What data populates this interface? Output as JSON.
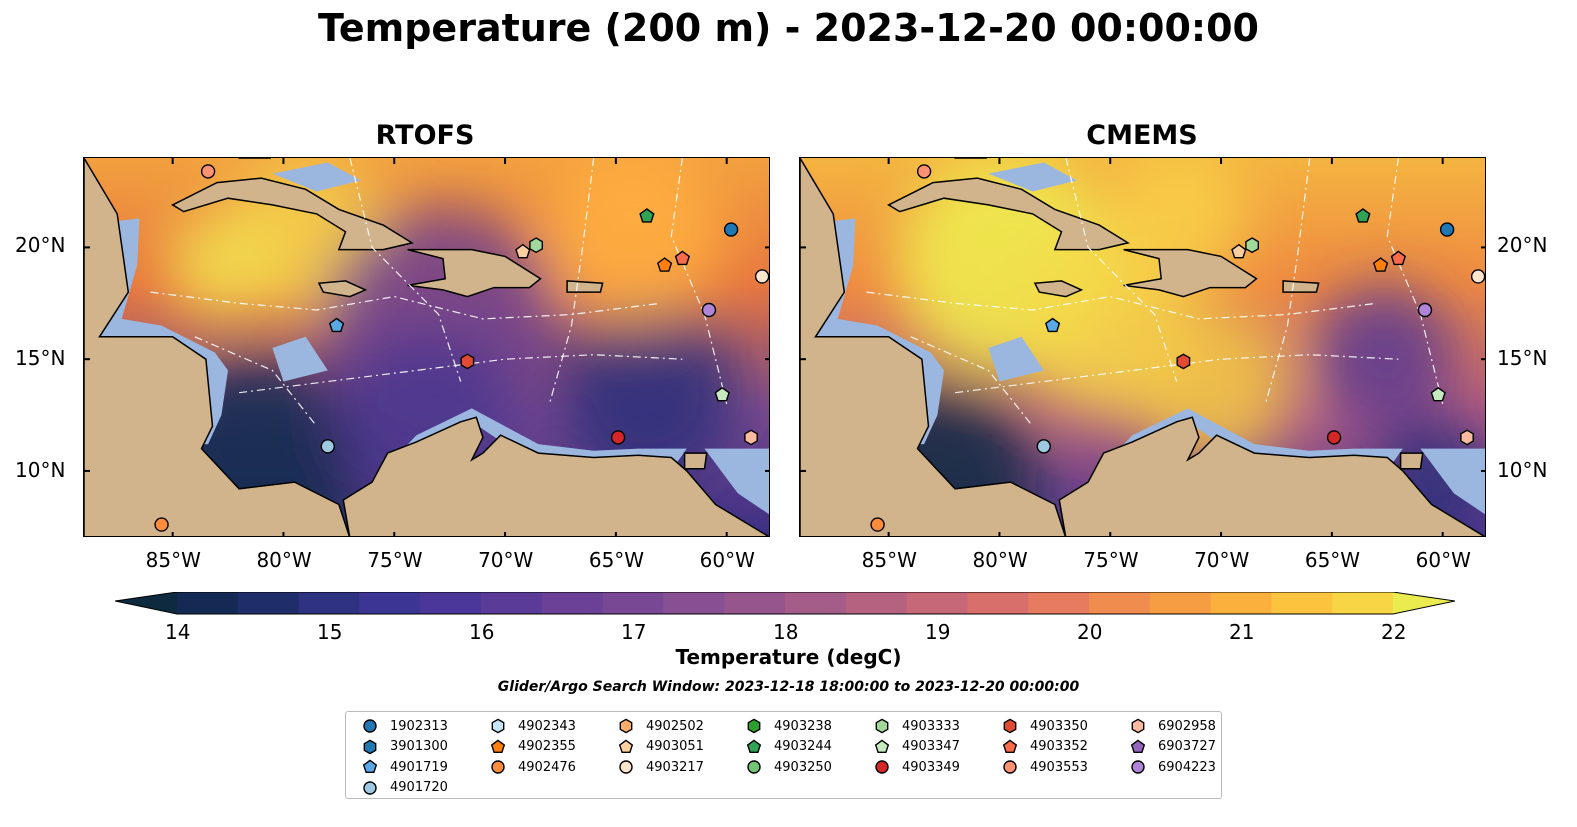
{
  "title": "Temperature (200 m) - 2023-12-20 00:00:00",
  "colors": {
    "land": "#d2b48c",
    "shelf": "#9bb7e0",
    "contour": "#222222",
    "track": "#ffffff"
  },
  "chart_data": {
    "type": "heatmap",
    "panels": [
      {
        "title": "RTOFS"
      },
      {
        "title": "CMEMS"
      }
    ],
    "lon_range": [
      -89,
      -58
    ],
    "lat_range": [
      7,
      24
    ],
    "lon_ticks": [
      -85,
      -80,
      -75,
      -70,
      -65,
      -60
    ],
    "lat_ticks": [
      10,
      15,
      20
    ],
    "lon_tick_labels": [
      "85°W",
      "80°W",
      "75°W",
      "70°W",
      "65°W",
      "60°W"
    ],
    "lat_tick_labels": [
      "10°N",
      "15°N",
      "20°N"
    ],
    "colorbar": {
      "label": "Temperature (degC)",
      "min": 14,
      "max": 22,
      "ticks": [
        14,
        15,
        16,
        17,
        18,
        19,
        20,
        21,
        22
      ],
      "colors": [
        "#0e2a3f",
        "#142a55",
        "#1f2e6a",
        "#2e3280",
        "#3d3593",
        "#4b3799",
        "#5b3b98",
        "#6a4196",
        "#784894",
        "#875092",
        "#96568d",
        "#a45c88",
        "#b46280",
        "#c66877",
        "#d86f6b",
        "#e67b5f",
        "#ef8c4e",
        "#f69d43",
        "#fbb03e",
        "#fcc33f",
        "#f8d545",
        "#e9eb4f"
      ]
    },
    "search_window": "Glider/Argo Search Window: 2023-12-18 18:00:00 to 2023-12-20 00:00:00",
    "floats": [
      {
        "id": "1902313",
        "marker": "circle",
        "color": "#1f77b4",
        "lon": -59.8,
        "lat": 20.8
      },
      {
        "id": "3901300",
        "marker": "hexagon",
        "color": "#1f77b4",
        "lon": null,
        "lat": null
      },
      {
        "id": "4901719",
        "marker": "pentagon",
        "color": "#5aa9e6",
        "lon": -77.6,
        "lat": 16.5
      },
      {
        "id": "4901720",
        "marker": "circle",
        "color": "#9ecae1",
        "lon": -78.0,
        "lat": 11.1
      },
      {
        "id": "4902343",
        "marker": "hexagon",
        "color": "#c6e6f5",
        "lon": null,
        "lat": null
      },
      {
        "id": "4902355",
        "marker": "pentagon",
        "color": "#ff7f0e",
        "lon": -62.8,
        "lat": 19.2
      },
      {
        "id": "4902476",
        "marker": "circle",
        "color": "#fd8d3c",
        "lon": -85.5,
        "lat": 7.6
      },
      {
        "id": "4902502",
        "marker": "hexagon",
        "color": "#fdae6b",
        "lon": null,
        "lat": null
      },
      {
        "id": "4903051",
        "marker": "pentagon",
        "color": "#fdd0a2",
        "lon": -69.2,
        "lat": 19.8
      },
      {
        "id": "4903217",
        "marker": "circle",
        "color": "#fee6ce",
        "lon": -58.4,
        "lat": 18.7
      },
      {
        "id": "4903238",
        "marker": "hexagon",
        "color": "#2ca02c",
        "lon": null,
        "lat": null
      },
      {
        "id": "4903244",
        "marker": "pentagon",
        "color": "#31a354",
        "lon": -63.6,
        "lat": 21.4
      },
      {
        "id": "4903250",
        "marker": "circle",
        "color": "#74c476",
        "lon": null,
        "lat": null
      },
      {
        "id": "4903333",
        "marker": "hexagon",
        "color": "#a1d99b",
        "lon": -68.6,
        "lat": 20.1
      },
      {
        "id": "4903347",
        "marker": "pentagon",
        "color": "#c7e9c0",
        "lon": -60.2,
        "lat": 13.4
      },
      {
        "id": "4903349",
        "marker": "circle",
        "color": "#d62728",
        "lon": -64.9,
        "lat": 11.5
      },
      {
        "id": "4903350",
        "marker": "hexagon",
        "color": "#e34a33",
        "lon": -71.7,
        "lat": 14.9
      },
      {
        "id": "4903352",
        "marker": "pentagon",
        "color": "#fb6a4a",
        "lon": -62.0,
        "lat": 19.5
      },
      {
        "id": "4903553",
        "marker": "circle",
        "color": "#fc9272",
        "lon": -83.4,
        "lat": 23.4
      },
      {
        "id": "6902958",
        "marker": "hexagon",
        "color": "#fcbba1",
        "lon": -58.9,
        "lat": 11.5
      },
      {
        "id": "6903727",
        "marker": "pentagon",
        "color": "#9467bd",
        "lon": null,
        "lat": null
      },
      {
        "id": "6904223",
        "marker": "circle",
        "color": "#b084d9",
        "lon": -60.8,
        "lat": 17.2
      }
    ]
  }
}
